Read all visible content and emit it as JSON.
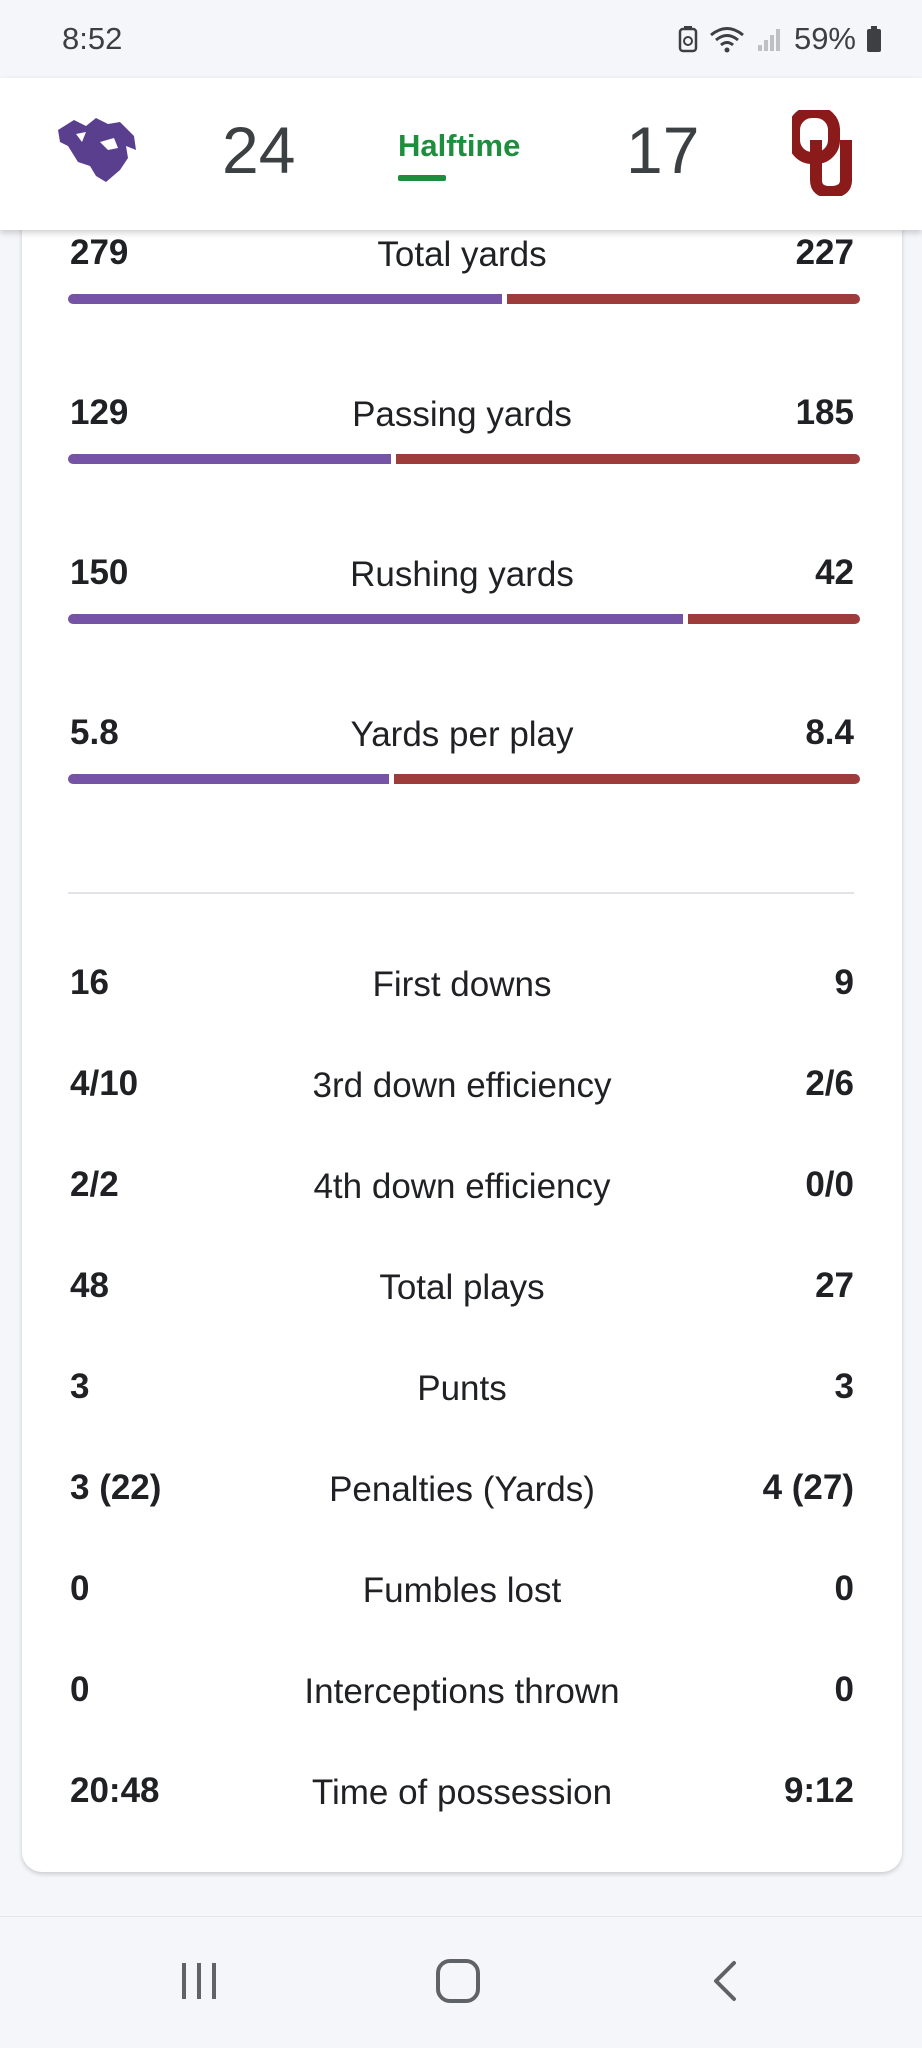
{
  "status_bar": {
    "time": "8:52",
    "battery": "59%",
    "icons": [
      "battery-saver-icon",
      "wifi-icon",
      "signal-icon",
      "battery-icon"
    ]
  },
  "header": {
    "home_team": {
      "logo": "kansas-state-wildcat-logo",
      "score": "24",
      "color": "#6a4b9c"
    },
    "away_team": {
      "logo": "oklahoma-ou-logo",
      "score": "17",
      "color": "#8b1a1a"
    },
    "game_state": "Halftime",
    "game_state_color": "#1e8e3e"
  },
  "bar_stats": [
    {
      "home": "279",
      "label": "Total yards",
      "away": "227",
      "home_fraction": 0.551
    },
    {
      "home": "129",
      "label": "Passing yards",
      "away": "185",
      "home_fraction": 0.411
    },
    {
      "home": "150",
      "label": "Rushing yards",
      "away": "42",
      "home_fraction": 0.781
    },
    {
      "home": "5.8",
      "label": "Yards per play",
      "away": "8.4",
      "home_fraction": 0.408
    }
  ],
  "list_stats": [
    {
      "home": "16",
      "label": "First downs",
      "away": "9"
    },
    {
      "home": "4/10",
      "label": "3rd down efficiency",
      "away": "2/6"
    },
    {
      "home": "2/2",
      "label": "4th down efficiency",
      "away": "0/0"
    },
    {
      "home": "48",
      "label": "Total plays",
      "away": "27"
    },
    {
      "home": "3",
      "label": "Punts",
      "away": "3"
    },
    {
      "home": "3 (22)",
      "label": "Penalties (Yards)",
      "away": "4 (27)"
    },
    {
      "home": "0",
      "label": "Fumbles lost",
      "away": "0"
    },
    {
      "home": "0",
      "label": "Interceptions thrown",
      "away": "0"
    },
    {
      "home": "20:48",
      "label": "Time of possession",
      "away": "9:12"
    }
  ],
  "colors": {
    "home_bar": "#7553a5",
    "away_bar": "#9e3b3b"
  },
  "nav_bar": {
    "buttons": [
      "recents-icon",
      "home-icon",
      "back-icon"
    ]
  }
}
